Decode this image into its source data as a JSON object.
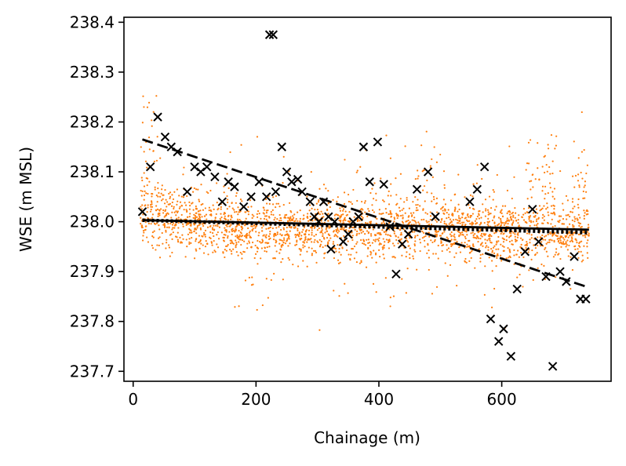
{
  "chart_data": {
    "type": "scatter",
    "title": "",
    "xlabel": "Chainage (m)",
    "ylabel": "WSE (m MSL)",
    "xlim": [
      -15,
      778
    ],
    "ylim": [
      237.68,
      238.41
    ],
    "x_ticks": [
      0,
      200,
      400,
      600
    ],
    "x_tick_labels": [
      "0",
      "200",
      "400",
      "600"
    ],
    "y_ticks": [
      237.7,
      237.8,
      237.9,
      238.0,
      238.1,
      238.2,
      238.3,
      238.4
    ],
    "y_tick_labels": [
      "237.7",
      "237.8",
      "237.9",
      "238.0",
      "238.1",
      "238.2",
      "238.3",
      "238.4"
    ],
    "grid": false,
    "series": [
      {
        "kind": "dense-scatter",
        "color": "#ff7f0e",
        "marker": "dot",
        "x_range": [
          12,
          742
        ],
        "centerline": [
          [
            12,
            238.012
          ],
          [
            200,
            237.985
          ],
          [
            400,
            237.988
          ],
          [
            600,
            237.982
          ],
          [
            742,
            237.975
          ]
        ],
        "spread": 0.03,
        "count": 2600
      },
      {
        "kind": "scatter",
        "color": "#000000",
        "marker": "x",
        "points": [
          [
            15,
            238.02
          ],
          [
            28,
            238.11
          ],
          [
            40,
            238.21
          ],
          [
            52,
            238.17
          ],
          [
            62,
            238.15
          ],
          [
            72,
            238.14
          ],
          [
            88,
            238.06
          ],
          [
            100,
            238.11
          ],
          [
            110,
            238.1
          ],
          [
            120,
            238.11
          ],
          [
            133,
            238.09
          ],
          [
            145,
            238.04
          ],
          [
            155,
            238.08
          ],
          [
            165,
            238.07
          ],
          [
            180,
            238.03
          ],
          [
            192,
            238.05
          ],
          [
            205,
            238.08
          ],
          [
            217,
            238.05
          ],
          [
            222,
            238.375
          ],
          [
            228,
            238.375
          ],
          [
            232,
            238.06
          ],
          [
            242,
            238.15
          ],
          [
            250,
            238.1
          ],
          [
            258,
            238.08
          ],
          [
            268,
            238.085
          ],
          [
            275,
            238.06
          ],
          [
            288,
            238.04
          ],
          [
            295,
            238.01
          ],
          [
            302,
            238.0
          ],
          [
            310,
            238.04
          ],
          [
            318,
            238.01
          ],
          [
            322,
            237.945
          ],
          [
            328,
            238.0
          ],
          [
            342,
            237.96
          ],
          [
            350,
            237.975
          ],
          [
            358,
            238.0
          ],
          [
            367,
            238.01
          ],
          [
            375,
            238.15
          ],
          [
            385,
            238.08
          ],
          [
            398,
            238.16
          ],
          [
            408,
            238.075
          ],
          [
            418,
            237.99
          ],
          [
            428,
            237.895
          ],
          [
            438,
            237.955
          ],
          [
            448,
            237.975
          ],
          [
            462,
            238.065
          ],
          [
            480,
            238.1
          ],
          [
            492,
            238.01
          ],
          [
            548,
            238.04
          ],
          [
            560,
            238.065
          ],
          [
            572,
            238.11
          ],
          [
            582,
            237.805
          ],
          [
            595,
            237.76
          ],
          [
            603,
            237.785
          ],
          [
            615,
            237.73
          ],
          [
            625,
            237.865
          ],
          [
            638,
            237.94
          ],
          [
            650,
            238.025
          ],
          [
            660,
            237.96
          ],
          [
            672,
            237.89
          ],
          [
            683,
            237.71
          ],
          [
            695,
            237.9
          ],
          [
            705,
            237.88
          ],
          [
            718,
            237.93
          ],
          [
            728,
            237.845
          ],
          [
            737,
            237.845
          ]
        ]
      },
      {
        "kind": "line",
        "color": "#000000",
        "style": "solid",
        "points": [
          [
            15,
            238.003
          ],
          [
            742,
            237.984
          ]
        ]
      },
      {
        "kind": "line",
        "color": "#000000",
        "style": "dotted",
        "points": [
          [
            15,
            238.003
          ],
          [
            742,
            237.978
          ]
        ]
      },
      {
        "kind": "line",
        "color": "#000000",
        "style": "dashed",
        "points": [
          [
            15,
            238.165
          ],
          [
            742,
            237.868
          ]
        ]
      }
    ]
  }
}
